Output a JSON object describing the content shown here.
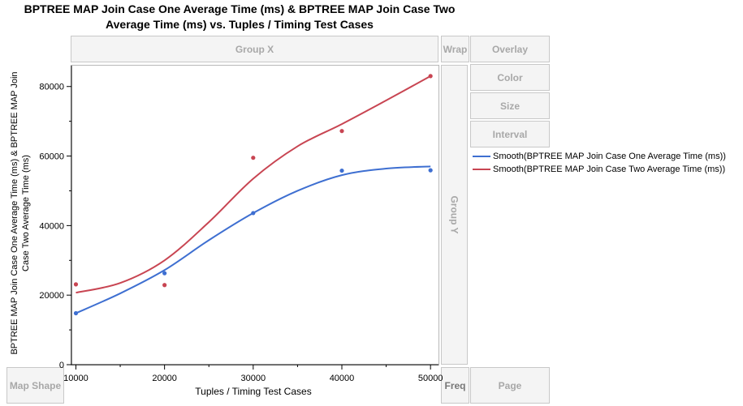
{
  "title_line1": "BPTREE MAP Join Case One Average Time (ms) & BPTREE MAP Join Case Two",
  "title_line2": "Average Time (ms) vs. Tuples / Timing Test Cases",
  "zones": {
    "group_x": "Group X",
    "wrap": "Wrap",
    "overlay": "Overlay",
    "color": "Color",
    "size": "Size",
    "interval": "Interval",
    "group_y": "Group Y",
    "map_shape": "Map Shape",
    "freq": "Freq",
    "page": "Page"
  },
  "colors": {
    "series1": "#3e6fd1",
    "series2": "#c84552"
  },
  "chart_data": {
    "type": "scatter",
    "xlabel": "Tuples / Timing Test Cases",
    "ylabel": "BPTREE MAP Join Case One Average Time (ms) & BPTREE MAP Join Case Two Average Time (ms)",
    "xticks": [
      10000,
      20000,
      30000,
      40000,
      50000
    ],
    "yticks": [
      0,
      20000,
      40000,
      60000,
      80000
    ],
    "xlim": [
      9500,
      50900
    ],
    "ylim": [
      0,
      86000
    ],
    "series": [
      {
        "name": "Smooth(BPTREE MAP Join Case One Average Time (ms))",
        "x": [
          10000,
          20000,
          30000,
          40000,
          50000
        ],
        "y": [
          14800,
          26300,
          43600,
          55800,
          55900
        ],
        "smooth": [
          [
            10000,
            14800
          ],
          [
            15000,
            20500
          ],
          [
            20000,
            27200
          ],
          [
            25000,
            35800
          ],
          [
            30000,
            43600
          ],
          [
            35000,
            50000
          ],
          [
            40000,
            54500
          ],
          [
            45000,
            56400
          ],
          [
            50000,
            57000
          ]
        ]
      },
      {
        "name": "Smooth(BPTREE MAP Join Case Two Average Time (ms))",
        "x": [
          10000,
          20000,
          30000,
          40000,
          50000
        ],
        "y": [
          23100,
          22900,
          59500,
          67200,
          83000
        ],
        "smooth": [
          [
            10000,
            20700
          ],
          [
            15000,
            23500
          ],
          [
            20000,
            30000
          ],
          [
            25000,
            41000
          ],
          [
            30000,
            53500
          ],
          [
            35000,
            62800
          ],
          [
            40000,
            69200
          ],
          [
            45000,
            76000
          ],
          [
            50000,
            83000
          ]
        ]
      }
    ]
  }
}
